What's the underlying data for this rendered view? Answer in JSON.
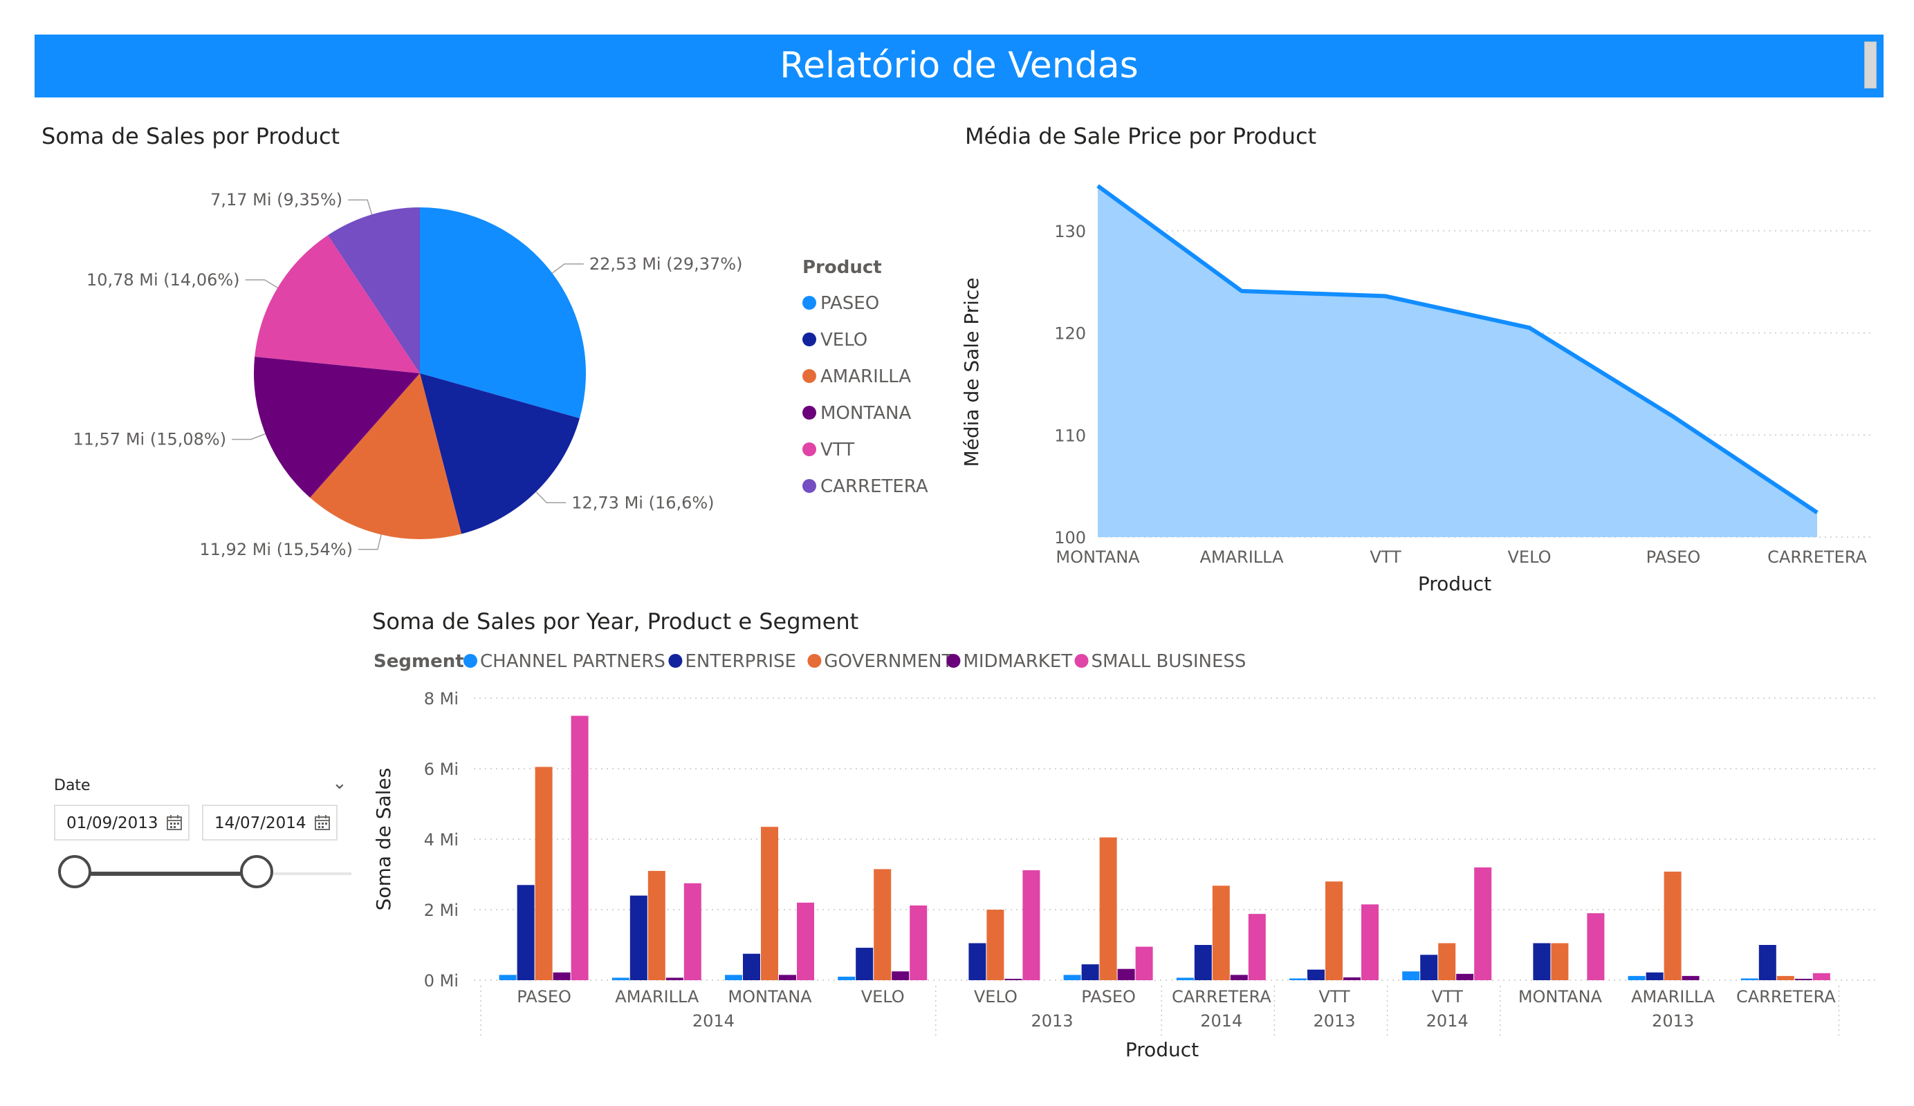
{
  "header": {
    "title": "Relatório de Vendas"
  },
  "colors": {
    "accent": "#118dff",
    "paseo": "#118dff",
    "velo": "#12239e",
    "amarilla": "#e66c37",
    "montana": "#6b007b",
    "vtt": "#e044a7",
    "carretera": "#744ec2",
    "area_fill": "#a0d1ff",
    "line": "#118dff"
  },
  "pie": {
    "title": "Soma de Sales por Product",
    "legend_title": "Product",
    "legend": [
      "PASEO",
      "VELO",
      "AMARILLA",
      "MONTANA",
      "VTT",
      "CARRETERA"
    ]
  },
  "slicer": {
    "title": "Date",
    "start": "01/09/2013",
    "end": "14/07/2014",
    "range_start_fraction": 0.0,
    "range_end_fraction": 0.66
  },
  "chart_data": [
    {
      "type": "pie",
      "title": "Soma de Sales por Product",
      "legend_title": "Product",
      "slices": [
        {
          "name": "PASEO",
          "value": 22.53,
          "label": "22,53 Mi (29,37%)",
          "color": "#118dff"
        },
        {
          "name": "VELO",
          "value": 12.73,
          "label": "12,73 Mi (16,6%)",
          "color": "#12239e"
        },
        {
          "name": "AMARILLA",
          "value": 11.92,
          "label": "11,92 Mi (15,54%)",
          "color": "#e66c37"
        },
        {
          "name": "MONTANA",
          "value": 11.57,
          "label": "11,57 Mi (15,08%)",
          "color": "#6b007b"
        },
        {
          "name": "VTT",
          "value": 10.78,
          "label": "10,78 Mi (14,06%)",
          "color": "#e044a7"
        },
        {
          "name": "CARRETERA",
          "value": 7.17,
          "label": "7,17 Mi (9,35%)",
          "color": "#744ec2"
        }
      ]
    },
    {
      "type": "area",
      "title": "Média de Sale Price por Product",
      "xlabel": "Product",
      "ylabel": "Média de Sale Price",
      "categories": [
        "MONTANA",
        "AMARILLA",
        "VTT",
        "VELO",
        "PASEO",
        "CARRETERA"
      ],
      "values": [
        134.4,
        124.1,
        123.6,
        120.5,
        111.8,
        102.4
      ],
      "ylim": [
        100,
        135
      ],
      "yticks": [
        "100",
        "110",
        "120",
        "130"
      ],
      "grid": true
    },
    {
      "type": "bar",
      "title": "Soma de Sales por Year, Product e Segment",
      "xlabel": "Product",
      "ylabel": "Soma de Sales",
      "legend_title": "Segment",
      "legend_position": "top-left",
      "ylim": [
        0,
        8
      ],
      "yticks": [
        "0 Mi",
        "2 Mi",
        "4 Mi",
        "6 Mi",
        "8 Mi"
      ],
      "categories": [
        "PASEO",
        "AMARILLA",
        "MONTANA",
        "VELO",
        "VELO",
        "PASEO",
        "CARRETERA",
        "VTT",
        "VTT",
        "MONTANA",
        "AMARILLA",
        "CARRETERA"
      ],
      "year_groups": [
        {
          "label": "2014",
          "span": 4
        },
        {
          "label": "2013",
          "span": 2
        },
        {
          "label": "2014",
          "span": 1
        },
        {
          "label": "2013",
          "span": 1
        },
        {
          "label": "2014",
          "span": 1
        },
        {
          "label": "2013",
          "span": 3
        }
      ],
      "series": [
        {
          "name": "CHANNEL PARTNERS",
          "color": "#118dff",
          "values": [
            0.15,
            0.07,
            0.15,
            0.1,
            0.0,
            0.15,
            0.07,
            0.05,
            0.25,
            0.0,
            0.12,
            0.05
          ]
        },
        {
          "name": "ENTERPRISE",
          "color": "#12239e",
          "values": [
            2.7,
            2.4,
            0.75,
            0.92,
            1.05,
            0.45,
            1.0,
            0.3,
            0.72,
            1.05,
            0.22,
            1.0
          ]
        },
        {
          "name": "GOVERNMENT",
          "color": "#e66c37",
          "values": [
            6.05,
            3.1,
            4.35,
            3.15,
            2.0,
            4.05,
            2.68,
            2.8,
            1.05,
            1.05,
            3.08,
            0.12
          ]
        },
        {
          "name": "MIDMARKET",
          "color": "#6b007b",
          "values": [
            0.22,
            0.07,
            0.15,
            0.25,
            0.04,
            0.32,
            0.15,
            0.08,
            0.18,
            0.0,
            0.12,
            0.04
          ]
        },
        {
          "name": "SMALL BUSINESS",
          "color": "#e044a7",
          "values": [
            7.5,
            2.75,
            2.2,
            2.12,
            3.12,
            0.95,
            1.88,
            2.15,
            3.2,
            1.9,
            0.0,
            0.2
          ]
        }
      ],
      "grid": true
    }
  ]
}
